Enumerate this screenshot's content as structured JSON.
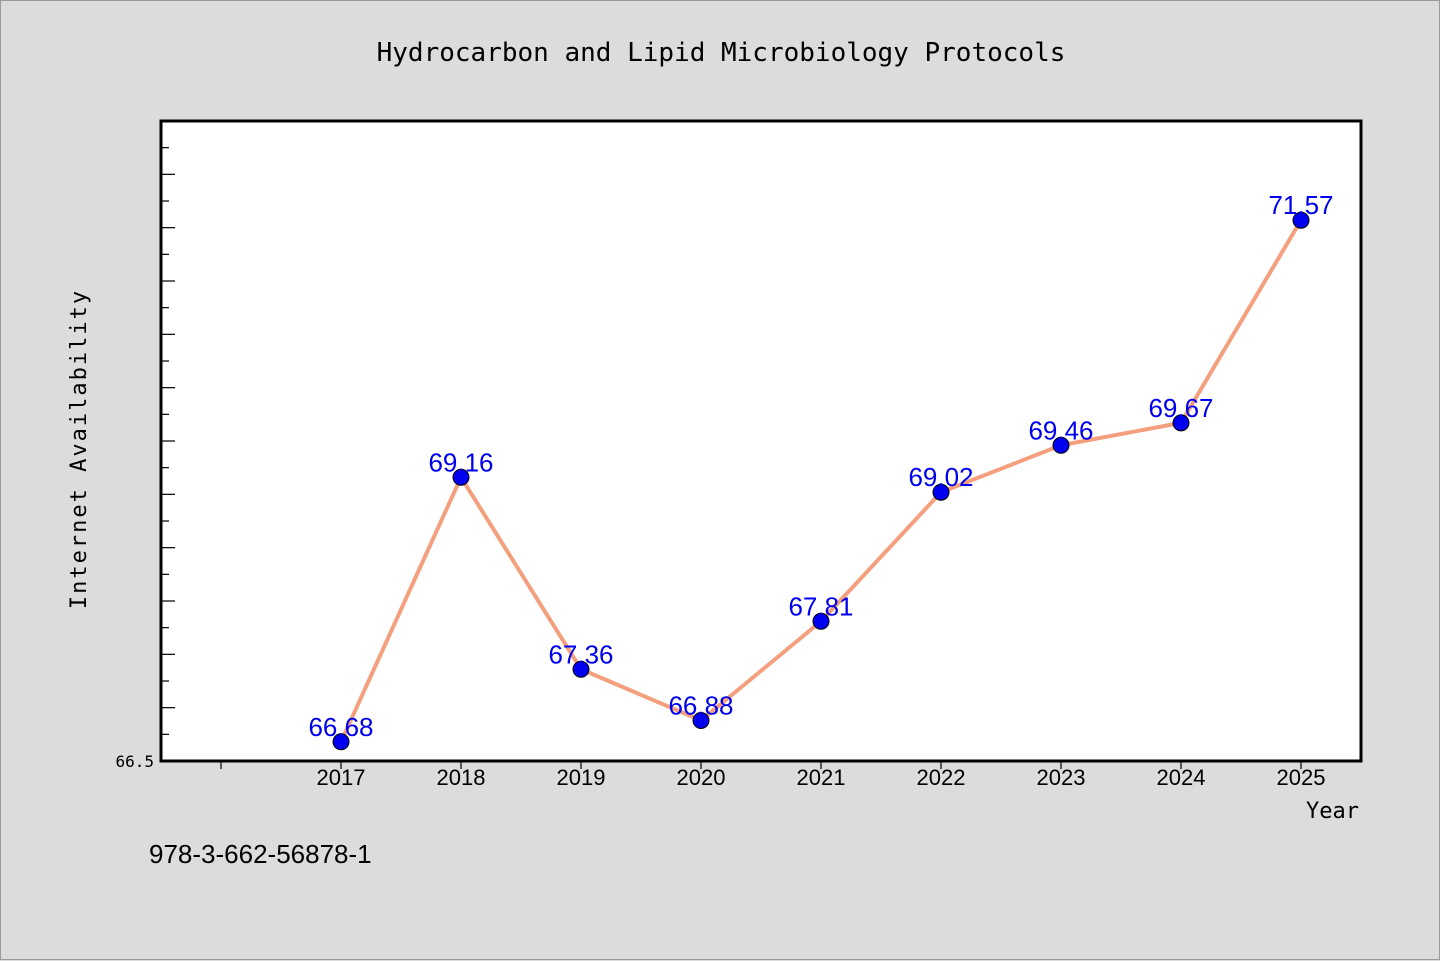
{
  "chart_data": {
    "type": "line",
    "title": "Hydrocarbon and Lipid Microbiology Protocols",
    "xlabel": "Year",
    "ylabel": "Internet Availability",
    "categories": [
      "2017",
      "2018",
      "2019",
      "2020",
      "2021",
      "2022",
      "2023",
      "2024",
      "2025"
    ],
    "series": [
      {
        "values": [
          66.68,
          69.16,
          67.36,
          66.88,
          67.81,
          69.02,
          69.46,
          69.67,
          71.57
        ],
        "labels": [
          "66.68",
          "69.16",
          "67.36",
          "66.88",
          "67.81",
          "69.02",
          "69.46",
          "69.67",
          "71.57"
        ]
      }
    ],
    "ylim": [
      66.5,
      72.5
    ],
    "y_tick_labels": [
      "66.5"
    ],
    "grid": false,
    "line_color": "#f4a07f",
    "marker_color": "#0000ee",
    "label_color": "#0000ee",
    "plot_background": "#ffffff",
    "page_background": "#dcdcdc"
  },
  "footer": {
    "isbn": "978-3-662-56878-1"
  }
}
